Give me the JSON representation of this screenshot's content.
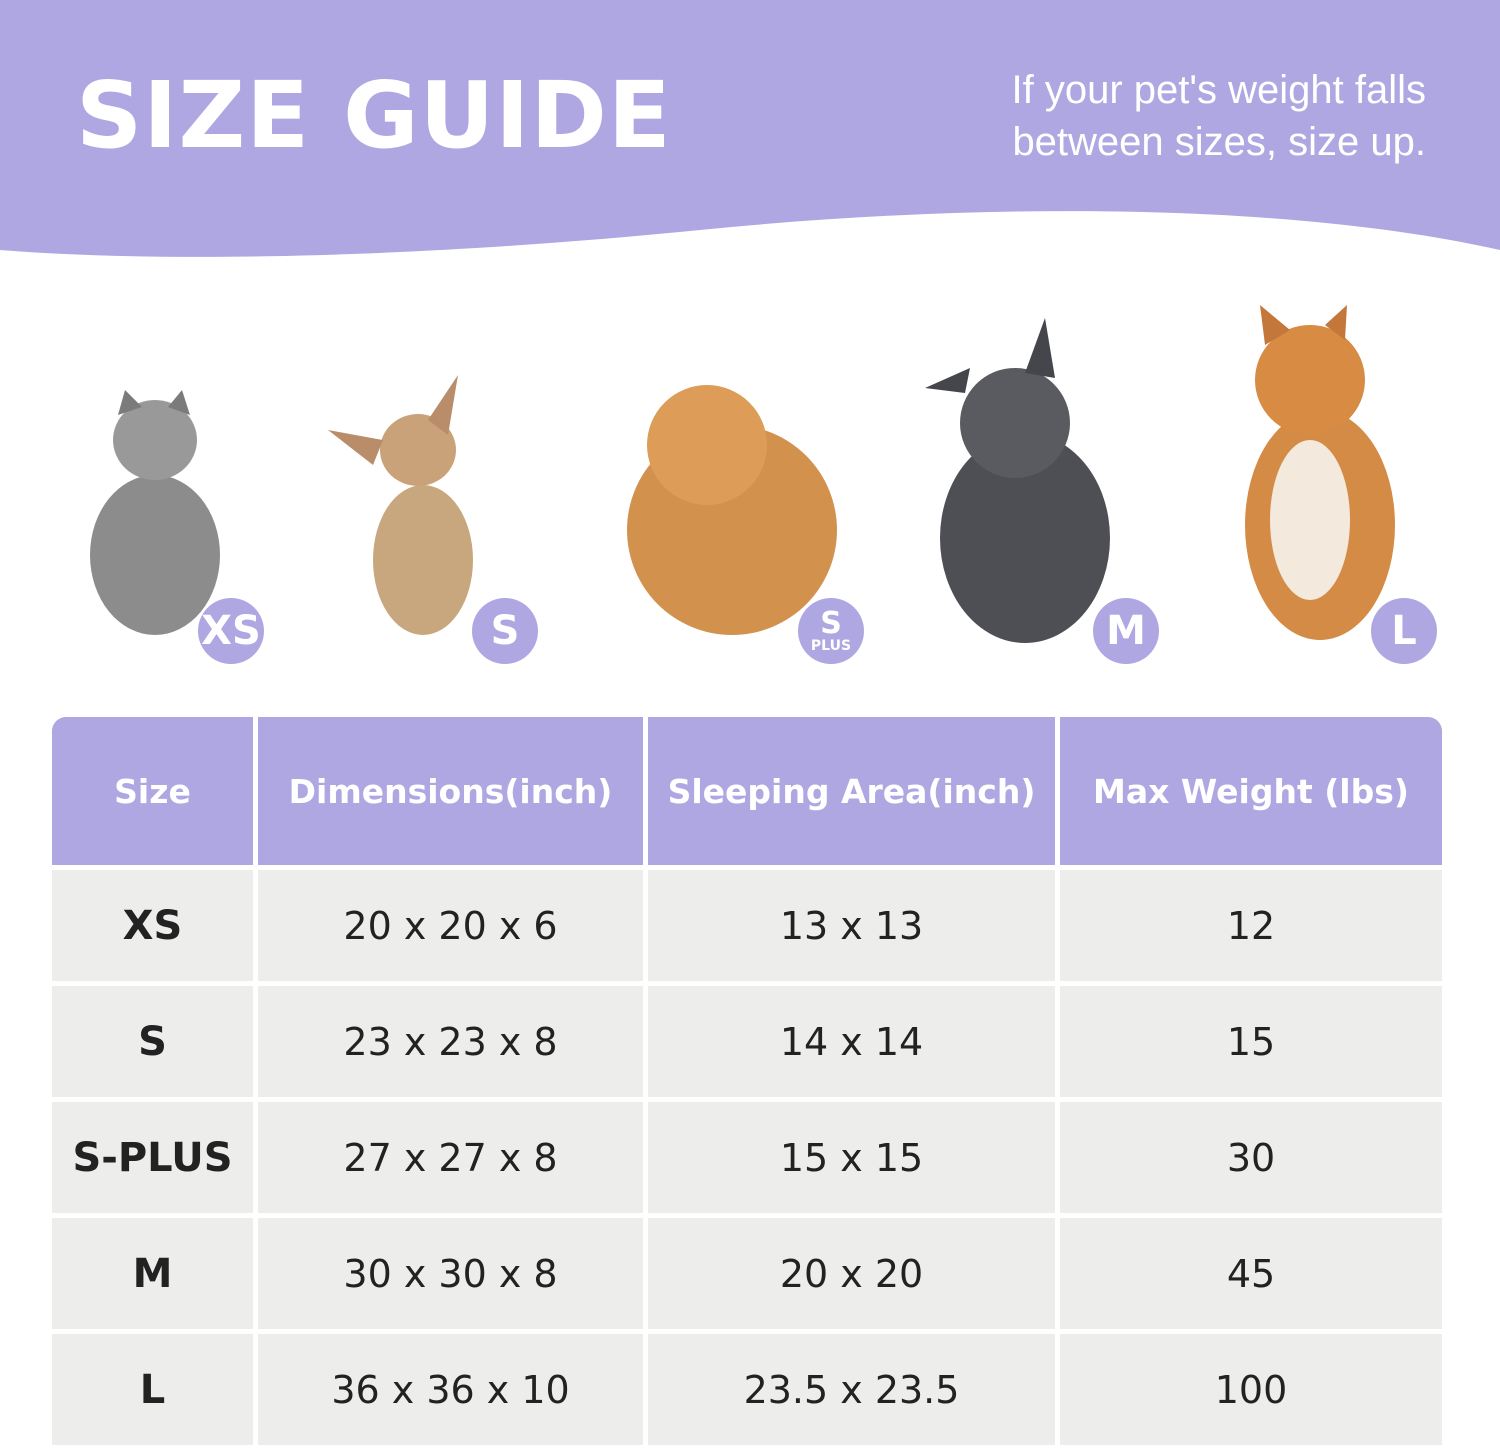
{
  "header": {
    "title": "SIZE GUIDE",
    "note_line1": "If your pet's weight falls",
    "note_line2": "between sizes, size up."
  },
  "colors": {
    "accent": "#afa7e2",
    "row_bg": "#edeeec",
    "text": "#222222"
  },
  "pets": [
    {
      "animal": "cat",
      "badge": "XS",
      "badge_sub": ""
    },
    {
      "animal": "chihuahua",
      "badge": "S",
      "badge_sub": ""
    },
    {
      "animal": "pomeranian",
      "badge": "S",
      "badge_sub": "PLUS"
    },
    {
      "animal": "french-bulldog",
      "badge": "M",
      "badge_sub": ""
    },
    {
      "animal": "shiba-inu",
      "badge": "L",
      "badge_sub": ""
    }
  ],
  "table": {
    "headers": [
      "Size",
      "Dimensions(inch)",
      "Sleeping Area(inch)",
      "Max Weight (lbs)"
    ],
    "rows": [
      [
        "XS",
        "20 x 20 x 6",
        "13 x 13",
        "12"
      ],
      [
        "S",
        "23 x 23 x 8",
        "14 x 14",
        "15"
      ],
      [
        "S-PLUS",
        "27 x 27 x 8",
        "15 x 15",
        "30"
      ],
      [
        "M",
        "30 x 30 x 8",
        "20 x 20",
        "45"
      ],
      [
        "L",
        "36 x 36 x 10",
        "23.5 x 23.5",
        "100"
      ]
    ]
  }
}
